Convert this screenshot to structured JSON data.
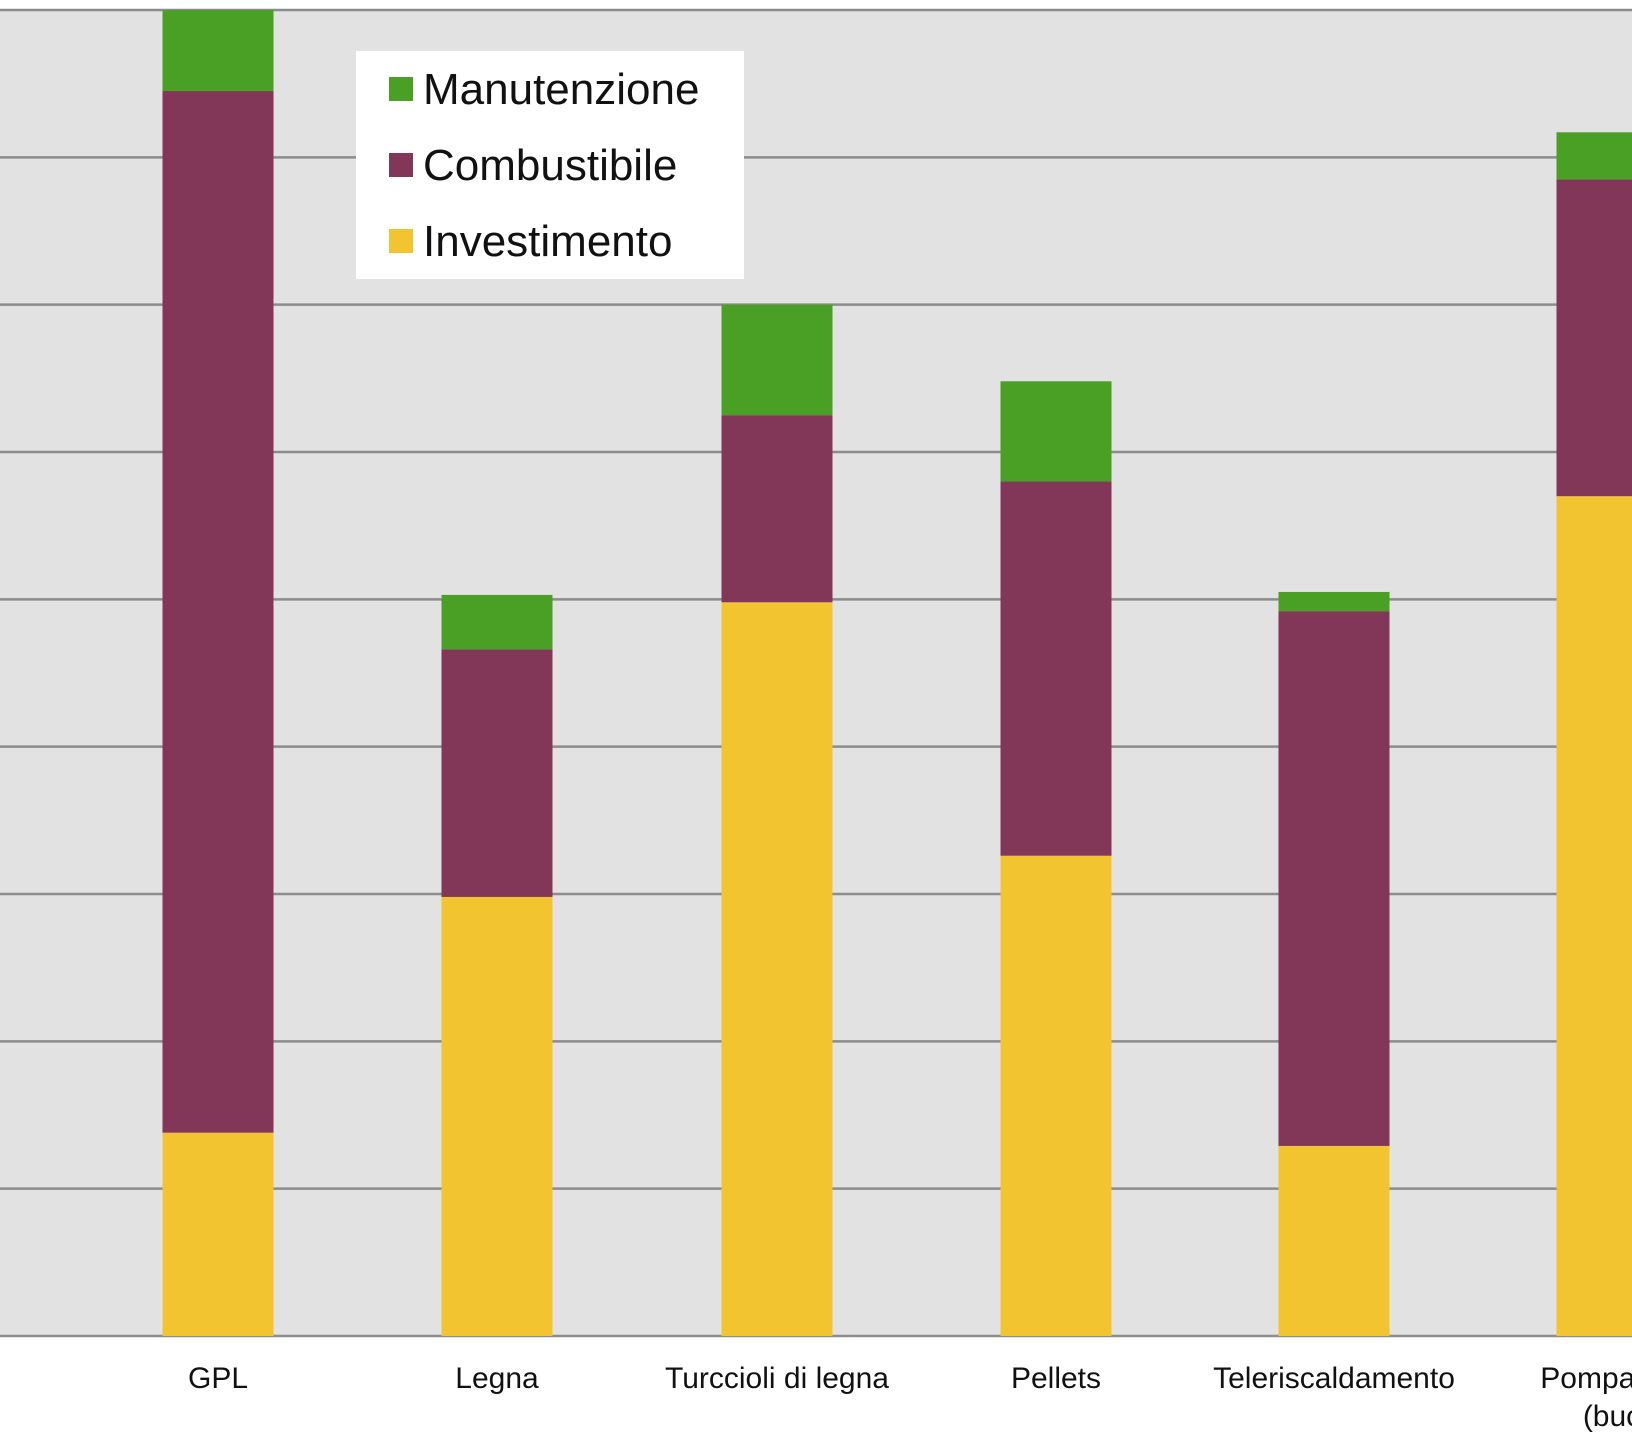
{
  "chart_data": {
    "type": "bar",
    "stacked": true,
    "title": "",
    "xlabel": "",
    "ylabel": "",
    "categories": [
      "GPL",
      "Legna",
      "Turccioli di legna",
      "Pellets",
      "Teleriscaldamento",
      "Pompa die (buc"
    ],
    "series": [
      {
        "name": "Investimento",
        "color": "#F2C530",
        "values": [
          1.38,
          2.98,
          4.98,
          3.26,
          1.29,
          5.7
        ]
      },
      {
        "name": "Combustibile",
        "color": "#823658",
        "values": [
          7.07,
          1.68,
          1.27,
          2.54,
          3.63,
          2.15
        ]
      },
      {
        "name": "Manutenzione",
        "color": "#4AA024",
        "values": [
          0.55,
          0.37,
          0.75,
          0.68,
          0.13,
          0.32
        ]
      }
    ],
    "legend_order": [
      "Manutenzione",
      "Combustibile",
      "Investimento"
    ],
    "legend_position": "top-left",
    "ylim": [
      0,
      9
    ],
    "grid_lines": 9,
    "grid": true,
    "plot_background": "#E2E2E2",
    "gridline_color": "#8C8C8C"
  }
}
